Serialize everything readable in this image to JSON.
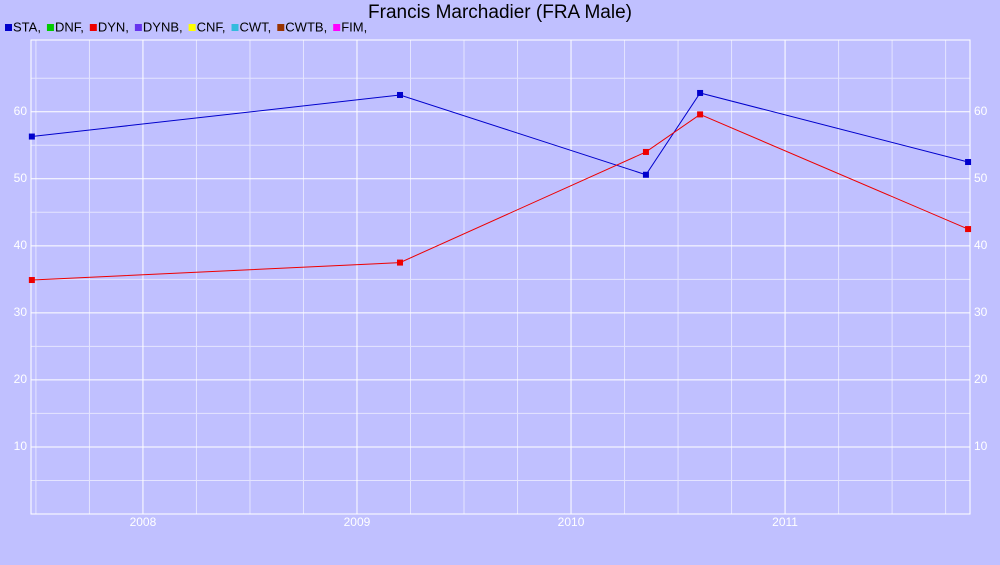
{
  "chart_data": {
    "type": "line",
    "title": "Francis Marchadier (FRA Male)",
    "series": [
      {
        "name": "STA,",
        "color": "#0000cc",
        "x": [
          2007.481,
          2009.201,
          2010.35,
          2010.603,
          2011.855
        ],
        "values": [
          56.3,
          62.5,
          50.6,
          62.8,
          52.5
        ]
      },
      {
        "name": "DNF,",
        "color": "#00cc00",
        "x": [],
        "values": []
      },
      {
        "name": "DYN,",
        "color": "#ee0000",
        "x": [
          2007.481,
          2009.201,
          2010.35,
          2010.603,
          2011.855
        ],
        "values": [
          34.9,
          37.5,
          54.0,
          59.6,
          42.5
        ]
      },
      {
        "name": "DYNB,",
        "color": "#6633ee",
        "x": [],
        "values": []
      },
      {
        "name": "CNF,",
        "color": "#ffff00",
        "x": [],
        "values": []
      },
      {
        "name": "CWT,",
        "color": "#33bbdd",
        "x": [],
        "values": []
      },
      {
        "name": "CWTB,",
        "color": "#993300",
        "x": [],
        "values": []
      },
      {
        "name": "FIM,",
        "color": "#ff00ff",
        "x": [],
        "values": []
      }
    ],
    "xlim": [
      2007.477,
      2011.864
    ],
    "xticks": [
      2008,
      2009,
      2010,
      2011
    ],
    "xminorticks": [
      2007.5,
      2007.75,
      2008.25,
      2008.5,
      2008.75,
      2009.25,
      2009.5,
      2009.75,
      2010.25,
      2010.5,
      2010.75,
      2011.25,
      2011.5,
      2011.75
    ],
    "ylim": [
      0,
      70.7
    ],
    "yticks": [
      10,
      20,
      30,
      40,
      50,
      60
    ],
    "yminorticks": [
      5,
      15,
      25,
      35,
      45,
      55,
      65
    ],
    "grid": true
  }
}
